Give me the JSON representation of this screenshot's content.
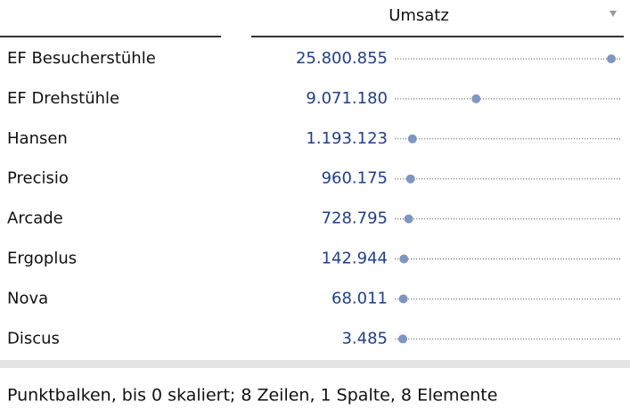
{
  "chart_data": {
    "type": "dot",
    "column_header": "Umsatz",
    "categories": [
      "EF Besucherstühle",
      "EF Drehstühle",
      "Hansen",
      "Precisio",
      "Arcade",
      "Ergoplus",
      "Nova",
      "Discus"
    ],
    "values": [
      25800855,
      9071180,
      1193123,
      960175,
      728795,
      142944,
      68011,
      3485
    ],
    "value_labels": [
      "25.800.855",
      "9.071.180",
      "1.193.123",
      "960.175",
      "728.795",
      "142.944",
      "68.011",
      "3.485"
    ],
    "color": "#7f96c0",
    "caption": "Punktbalken, bis 0 skaliert; 8 Zeilen, 1 Spalte, 8 Elemente"
  }
}
